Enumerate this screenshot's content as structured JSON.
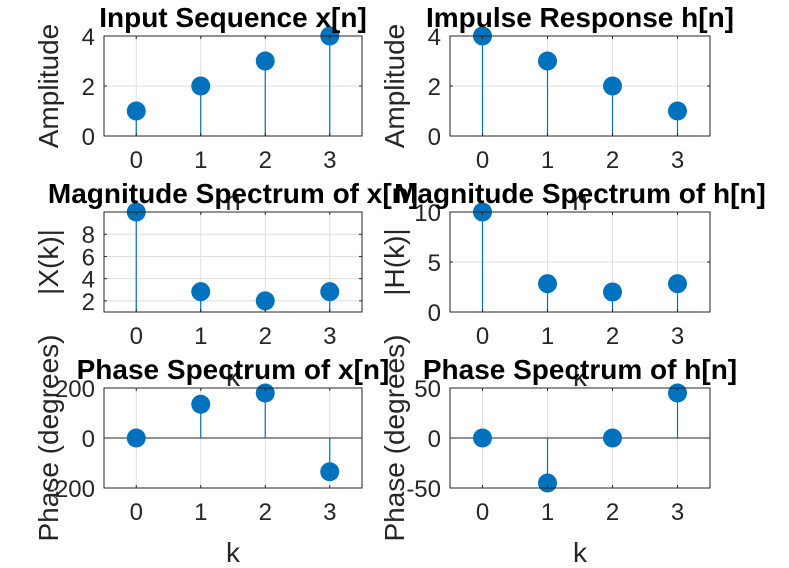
{
  "chart_data": [
    {
      "type": "stem",
      "title": "Input Sequence x[n]",
      "xlabel": "n",
      "ylabel": "Amplitude",
      "x": [
        0,
        1,
        2,
        3
      ],
      "values": [
        1,
        2,
        3,
        4
      ],
      "xlim": [
        -0.5,
        3.5
      ],
      "ylim": [
        0,
        4
      ],
      "xticks": [
        0,
        1,
        2,
        3
      ],
      "yticks": [
        0,
        2,
        4
      ],
      "grid": true,
      "color": "#0072BD"
    },
    {
      "type": "stem",
      "title": "Impulse Response h[n]",
      "xlabel": "n",
      "ylabel": "Amplitude",
      "x": [
        0,
        1,
        2,
        3
      ],
      "values": [
        4,
        3,
        2,
        1
      ],
      "xlim": [
        -0.5,
        3.5
      ],
      "ylim": [
        0,
        4
      ],
      "xticks": [
        0,
        1,
        2,
        3
      ],
      "yticks": [
        0,
        2,
        4
      ],
      "grid": true,
      "color": "#0072BD"
    },
    {
      "type": "stem",
      "title": "Magnitude Spectrum of x[n]",
      "xlabel": "k",
      "ylabel": "|X(k)|",
      "x": [
        0,
        1,
        2,
        3
      ],
      "values": [
        10,
        2.83,
        2,
        2.83
      ],
      "xlim": [
        -0.5,
        3.5
      ],
      "ylim": [
        1,
        10
      ],
      "xticks": [
        0,
        1,
        2,
        3
      ],
      "yticks": [
        2,
        4,
        6,
        8
      ],
      "grid": true,
      "color": "#0072BD"
    },
    {
      "type": "stem",
      "title": "Magnitude Spectrum of h[n]",
      "xlabel": "k",
      "ylabel": "|H(k)|",
      "x": [
        0,
        1,
        2,
        3
      ],
      "values": [
        10,
        2.83,
        2,
        2.83
      ],
      "xlim": [
        -0.5,
        3.5
      ],
      "ylim": [
        0,
        10
      ],
      "xticks": [
        0,
        1,
        2,
        3
      ],
      "yticks": [
        0,
        5,
        10
      ],
      "grid": true,
      "color": "#0072BD"
    },
    {
      "type": "stem",
      "title": "Phase Spectrum of x[n]",
      "xlabel": "k",
      "ylabel": "Phase (degrees)",
      "x": [
        0,
        1,
        2,
        3
      ],
      "values": [
        0,
        135,
        180,
        -135
      ],
      "xlim": [
        -0.5,
        3.5
      ],
      "ylim": [
        -200,
        200
      ],
      "xticks": [
        0,
        1,
        2,
        3
      ],
      "yticks": [
        -200,
        0,
        200
      ],
      "grid": true,
      "color": "#0072BD"
    },
    {
      "type": "stem",
      "title": "Phase Spectrum of h[n]",
      "xlabel": "k",
      "ylabel": "Phase (degrees)",
      "x": [
        0,
        1,
        2,
        3
      ],
      "values": [
        0,
        -45,
        0,
        45
      ],
      "xlim": [
        -0.5,
        3.5
      ],
      "ylim": [
        -50,
        50
      ],
      "xticks": [
        0,
        1,
        2,
        3
      ],
      "yticks": [
        -50,
        0,
        50
      ],
      "grid": true,
      "color": "#0072BD"
    }
  ]
}
